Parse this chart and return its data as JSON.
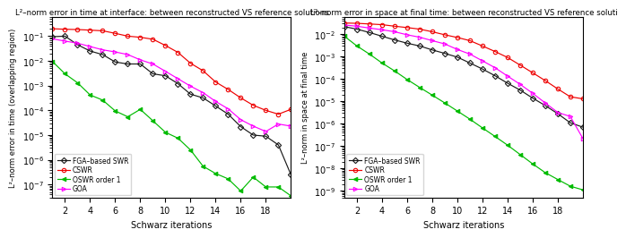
{
  "title1": "L²–norm error in time at interface: between reconstructed VS reference solutions",
  "title2": "L²–norm error in space at final time: between reconstructed VS reference soluti",
  "xlabel": "Schwarz iterations",
  "ylabel1": "L²–norm error in time (overlapping region)",
  "ylabel2": "L²–norm in space at final time",
  "x": [
    1,
    2,
    3,
    4,
    5,
    6,
    7,
    8,
    9,
    10,
    11,
    12,
    13,
    14,
    15,
    16,
    17,
    18,
    19,
    20
  ],
  "plot1": {
    "FGA": [
      0.095,
      0.1,
      0.045,
      0.025,
      0.018,
      0.009,
      0.0075,
      0.0075,
      0.003,
      0.0025,
      0.0012,
      0.00045,
      0.00032,
      0.00015,
      7e-05,
      2.2e-05,
      1e-05,
      9e-06,
      4e-06,
      2.5e-07
    ],
    "CSWR": [
      0.2,
      0.19,
      0.185,
      0.175,
      0.165,
      0.13,
      0.1,
      0.09,
      0.075,
      0.042,
      0.022,
      0.008,
      0.004,
      0.0014,
      0.0007,
      0.00032,
      0.00016,
      0.0001,
      7e-05,
      0.00011
    ],
    "OSWR": [
      0.0095,
      0.003,
      0.0013,
      0.00042,
      0.00026,
      9.5e-05,
      5.5e-05,
      0.00011,
      3.8e-05,
      1.3e-05,
      7.5e-06,
      2.5e-06,
      5.5e-07,
      2.8e-07,
      1.7e-07,
      5.5e-08,
      2e-07,
      8e-08,
      8e-08,
      3.5e-08
    ],
    "GOA": [
      0.078,
      0.063,
      0.052,
      0.038,
      0.028,
      0.023,
      0.018,
      0.011,
      0.0075,
      0.0038,
      0.0019,
      0.00095,
      0.00052,
      0.00023,
      0.000115,
      4.2e-05,
      2.3e-05,
      1.4e-05,
      2.8e-05,
      2.3e-05
    ]
  },
  "plot2": {
    "FGA": [
      0.022,
      0.017,
      0.012,
      0.0082,
      0.0056,
      0.004,
      0.003,
      0.002,
      0.0014,
      0.00095,
      0.00052,
      0.00028,
      0.00014,
      6.5e-05,
      3.2e-05,
      1.4e-05,
      6.5e-06,
      2.8e-06,
      1.1e-06,
      7e-07
    ],
    "CSWR": [
      0.032,
      0.031,
      0.029,
      0.027,
      0.023,
      0.02,
      0.017,
      0.013,
      0.0095,
      0.0072,
      0.0052,
      0.003,
      0.0017,
      0.00092,
      0.00042,
      0.00019,
      8.5e-05,
      3.6e-05,
      1.6e-05,
      1.3e-05
    ],
    "OSWR": [
      0.0082,
      0.003,
      0.0013,
      0.00052,
      0.00023,
      9.5e-05,
      4.2e-05,
      1.9e-05,
      8.5e-06,
      3.7e-06,
      1.6e-06,
      6.5e-07,
      2.7e-07,
      1.1e-07,
      4.2e-08,
      1.6e-08,
      6.5e-09,
      3.2e-09,
      1.6e-09,
      1.1e-09
    ],
    "GOA": [
      0.026,
      0.023,
      0.019,
      0.016,
      0.013,
      0.0095,
      0.0074,
      0.0052,
      0.0037,
      0.0021,
      0.0013,
      0.00065,
      0.00032,
      0.000135,
      5.8e-05,
      2.3e-05,
      8.5e-06,
      3.2e-06,
      2.1e-06,
      2.2e-07
    ]
  },
  "colors": {
    "FGA": "#1a1a1a",
    "CSWR": "#ee0000",
    "OSWR": "#00bb00",
    "GOA": "#ff00ff"
  },
  "markers": {
    "FGA": "D",
    "CSWR": "o",
    "OSWR": "<",
    "GOA": ">"
  },
  "legend_labels": {
    "FGA": "FGA–based SWR",
    "CSWR": "CSWR",
    "OSWR": "OSWR order 1",
    "GOA": "GOA"
  },
  "ylim1": [
    3e-08,
    0.6
  ],
  "ylim2": [
    5e-10,
    0.06
  ],
  "xlim": [
    1,
    20
  ]
}
